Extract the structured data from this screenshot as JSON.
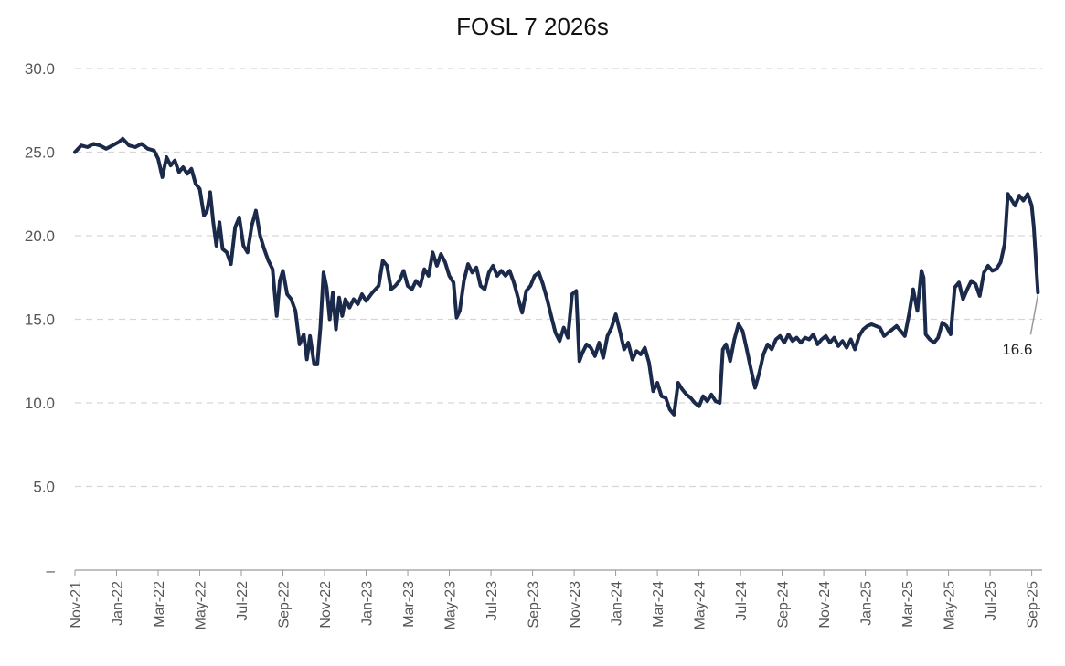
{
  "chart_data": {
    "type": "line",
    "title": "FOSL 7 2026s",
    "xlabel": "",
    "ylabel": "",
    "ylim": [
      0,
      30
    ],
    "grid": true,
    "y_ticks": [
      {
        "value": 0,
        "label": "–"
      },
      {
        "value": 5,
        "label": "5.0"
      },
      {
        "value": 10,
        "label": "10.0"
      },
      {
        "value": 15,
        "label": "15.0"
      },
      {
        "value": 20,
        "label": "20.0"
      },
      {
        "value": 25,
        "label": "25.0"
      },
      {
        "value": 30,
        "label": "30.0"
      }
    ],
    "x_range": [
      0,
      46.5
    ],
    "x_ticks": [
      {
        "value": 0,
        "label": "Nov-21"
      },
      {
        "value": 2,
        "label": "Jan-22"
      },
      {
        "value": 4,
        "label": "Mar-22"
      },
      {
        "value": 6,
        "label": "May-22"
      },
      {
        "value": 8,
        "label": "Jul-22"
      },
      {
        "value": 10,
        "label": "Sep-22"
      },
      {
        "value": 12,
        "label": "Nov-22"
      },
      {
        "value": 14,
        "label": "Jan-23"
      },
      {
        "value": 16,
        "label": "Mar-23"
      },
      {
        "value": 18,
        "label": "May-23"
      },
      {
        "value": 20,
        "label": "Jul-23"
      },
      {
        "value": 22,
        "label": "Sep-23"
      },
      {
        "value": 24,
        "label": "Nov-23"
      },
      {
        "value": 26,
        "label": "Jan-24"
      },
      {
        "value": 28,
        "label": "Mar-24"
      },
      {
        "value": 30,
        "label": "May-24"
      },
      {
        "value": 32,
        "label": "Jul-24"
      },
      {
        "value": 34,
        "label": "Sep-24"
      },
      {
        "value": 36,
        "label": "Nov-24"
      },
      {
        "value": 38,
        "label": "Jan-25"
      },
      {
        "value": 40,
        "label": "Mar-25"
      },
      {
        "value": 42,
        "label": "May-25"
      },
      {
        "value": 44,
        "label": "Jul-25"
      },
      {
        "value": 46,
        "label": "Sep-25"
      }
    ],
    "series": [
      {
        "name": "FOSL 7 2026s",
        "color": "#1b2a4a",
        "points": [
          [
            0.0,
            25.0
          ],
          [
            0.3,
            25.4
          ],
          [
            0.6,
            25.3
          ],
          [
            0.9,
            25.5
          ],
          [
            1.2,
            25.4
          ],
          [
            1.5,
            25.2
          ],
          [
            1.8,
            25.4
          ],
          [
            2.1,
            25.6
          ],
          [
            2.3,
            25.8
          ],
          [
            2.6,
            25.4
          ],
          [
            2.9,
            25.3
          ],
          [
            3.2,
            25.5
          ],
          [
            3.5,
            25.2
          ],
          [
            3.8,
            25.1
          ],
          [
            4.0,
            24.6
          ],
          [
            4.2,
            23.5
          ],
          [
            4.4,
            24.7
          ],
          [
            4.6,
            24.2
          ],
          [
            4.8,
            24.5
          ],
          [
            5.0,
            23.8
          ],
          [
            5.2,
            24.1
          ],
          [
            5.4,
            23.7
          ],
          [
            5.6,
            24.0
          ],
          [
            5.8,
            23.1
          ],
          [
            6.0,
            22.8
          ],
          [
            6.2,
            21.2
          ],
          [
            6.35,
            21.5
          ],
          [
            6.5,
            22.6
          ],
          [
            6.65,
            20.8
          ],
          [
            6.8,
            19.4
          ],
          [
            6.95,
            20.8
          ],
          [
            7.1,
            19.2
          ],
          [
            7.3,
            19.0
          ],
          [
            7.5,
            18.3
          ],
          [
            7.7,
            20.5
          ],
          [
            7.9,
            21.1
          ],
          [
            8.1,
            19.4
          ],
          [
            8.3,
            19.0
          ],
          [
            8.5,
            20.6
          ],
          [
            8.7,
            21.5
          ],
          [
            8.9,
            20.0
          ],
          [
            9.1,
            19.2
          ],
          [
            9.3,
            18.5
          ],
          [
            9.5,
            18.0
          ],
          [
            9.7,
            15.2
          ],
          [
            9.85,
            17.3
          ],
          [
            10.0,
            17.9
          ],
          [
            10.2,
            16.5
          ],
          [
            10.4,
            16.2
          ],
          [
            10.6,
            15.5
          ],
          [
            10.8,
            13.5
          ],
          [
            11.0,
            14.1
          ],
          [
            11.15,
            12.6
          ],
          [
            11.3,
            14.0
          ],
          [
            11.5,
            12.3
          ],
          [
            11.65,
            12.3
          ],
          [
            11.8,
            14.5
          ],
          [
            11.95,
            17.8
          ],
          [
            12.1,
            16.9
          ],
          [
            12.25,
            15.0
          ],
          [
            12.4,
            16.6
          ],
          [
            12.55,
            14.4
          ],
          [
            12.7,
            16.3
          ],
          [
            12.85,
            15.2
          ],
          [
            13.0,
            16.2
          ],
          [
            13.2,
            15.7
          ],
          [
            13.4,
            16.2
          ],
          [
            13.6,
            15.9
          ],
          [
            13.8,
            16.5
          ],
          [
            14.0,
            16.1
          ],
          [
            14.3,
            16.6
          ],
          [
            14.6,
            17.0
          ],
          [
            14.8,
            18.5
          ],
          [
            15.0,
            18.2
          ],
          [
            15.2,
            16.8
          ],
          [
            15.4,
            17.0
          ],
          [
            15.6,
            17.3
          ],
          [
            15.8,
            17.9
          ],
          [
            16.0,
            17.0
          ],
          [
            16.2,
            16.8
          ],
          [
            16.4,
            17.3
          ],
          [
            16.6,
            17.0
          ],
          [
            16.8,
            18.0
          ],
          [
            17.0,
            17.6
          ],
          [
            17.2,
            19.0
          ],
          [
            17.4,
            18.2
          ],
          [
            17.6,
            18.9
          ],
          [
            17.8,
            18.4
          ],
          [
            18.0,
            17.6
          ],
          [
            18.2,
            17.2
          ],
          [
            18.35,
            15.1
          ],
          [
            18.5,
            15.5
          ],
          [
            18.7,
            17.3
          ],
          [
            18.9,
            18.3
          ],
          [
            19.1,
            17.8
          ],
          [
            19.3,
            18.1
          ],
          [
            19.5,
            17.0
          ],
          [
            19.7,
            16.8
          ],
          [
            19.9,
            17.8
          ],
          [
            20.1,
            18.2
          ],
          [
            20.3,
            17.6
          ],
          [
            20.5,
            17.9
          ],
          [
            20.7,
            17.6
          ],
          [
            20.9,
            17.9
          ],
          [
            21.1,
            17.2
          ],
          [
            21.3,
            16.3
          ],
          [
            21.5,
            15.4
          ],
          [
            21.7,
            16.7
          ],
          [
            21.9,
            17.0
          ],
          [
            22.1,
            17.6
          ],
          [
            22.3,
            17.8
          ],
          [
            22.5,
            17.1
          ],
          [
            22.7,
            16.2
          ],
          [
            22.9,
            15.2
          ],
          [
            23.1,
            14.2
          ],
          [
            23.3,
            13.7
          ],
          [
            23.5,
            14.5
          ],
          [
            23.7,
            13.9
          ],
          [
            23.9,
            16.5
          ],
          [
            24.1,
            16.7
          ],
          [
            24.25,
            12.5
          ],
          [
            24.4,
            13.0
          ],
          [
            24.6,
            13.5
          ],
          [
            24.8,
            13.3
          ],
          [
            25.0,
            12.8
          ],
          [
            25.2,
            13.6
          ],
          [
            25.4,
            12.7
          ],
          [
            25.6,
            14.0
          ],
          [
            25.8,
            14.5
          ],
          [
            26.0,
            15.3
          ],
          [
            26.2,
            14.3
          ],
          [
            26.4,
            13.2
          ],
          [
            26.6,
            13.6
          ],
          [
            26.8,
            12.6
          ],
          [
            27.0,
            13.1
          ],
          [
            27.2,
            12.9
          ],
          [
            27.4,
            13.3
          ],
          [
            27.6,
            12.4
          ],
          [
            27.8,
            10.7
          ],
          [
            28.0,
            11.2
          ],
          [
            28.2,
            10.4
          ],
          [
            28.4,
            10.3
          ],
          [
            28.6,
            9.6
          ],
          [
            28.8,
            9.3
          ],
          [
            29.0,
            11.2
          ],
          [
            29.2,
            10.8
          ],
          [
            29.4,
            10.5
          ],
          [
            29.6,
            10.3
          ],
          [
            29.8,
            10.0
          ],
          [
            30.0,
            9.8
          ],
          [
            30.2,
            10.4
          ],
          [
            30.4,
            10.1
          ],
          [
            30.6,
            10.5
          ],
          [
            30.8,
            10.1
          ],
          [
            31.0,
            10.0
          ],
          [
            31.15,
            13.2
          ],
          [
            31.3,
            13.5
          ],
          [
            31.5,
            12.5
          ],
          [
            31.7,
            13.8
          ],
          [
            31.9,
            14.7
          ],
          [
            32.1,
            14.3
          ],
          [
            32.3,
            13.2
          ],
          [
            32.5,
            12.0
          ],
          [
            32.7,
            10.9
          ],
          [
            32.9,
            11.8
          ],
          [
            33.1,
            12.9
          ],
          [
            33.3,
            13.5
          ],
          [
            33.5,
            13.2
          ],
          [
            33.7,
            13.8
          ],
          [
            33.9,
            14.0
          ],
          [
            34.1,
            13.6
          ],
          [
            34.3,
            14.1
          ],
          [
            34.5,
            13.7
          ],
          [
            34.7,
            13.9
          ],
          [
            34.9,
            13.6
          ],
          [
            35.1,
            13.9
          ],
          [
            35.3,
            13.8
          ],
          [
            35.5,
            14.1
          ],
          [
            35.7,
            13.5
          ],
          [
            35.9,
            13.8
          ],
          [
            36.1,
            14.0
          ],
          [
            36.3,
            13.6
          ],
          [
            36.5,
            13.9
          ],
          [
            36.7,
            13.4
          ],
          [
            36.9,
            13.7
          ],
          [
            37.1,
            13.3
          ],
          [
            37.3,
            13.8
          ],
          [
            37.5,
            13.2
          ],
          [
            37.7,
            14.0
          ],
          [
            37.9,
            14.4
          ],
          [
            38.1,
            14.6
          ],
          [
            38.3,
            14.7
          ],
          [
            38.5,
            14.6
          ],
          [
            38.7,
            14.5
          ],
          [
            38.9,
            14.0
          ],
          [
            39.1,
            14.2
          ],
          [
            39.3,
            14.4
          ],
          [
            39.5,
            14.6
          ],
          [
            39.7,
            14.3
          ],
          [
            39.9,
            14.0
          ],
          [
            40.1,
            15.3
          ],
          [
            40.3,
            16.8
          ],
          [
            40.5,
            15.5
          ],
          [
            40.7,
            17.9
          ],
          [
            40.8,
            17.5
          ],
          [
            40.9,
            14.1
          ],
          [
            41.1,
            13.8
          ],
          [
            41.3,
            13.6
          ],
          [
            41.5,
            13.9
          ],
          [
            41.7,
            14.8
          ],
          [
            41.9,
            14.6
          ],
          [
            42.1,
            14.1
          ],
          [
            42.3,
            16.9
          ],
          [
            42.5,
            17.2
          ],
          [
            42.7,
            16.2
          ],
          [
            42.9,
            16.8
          ],
          [
            43.1,
            17.3
          ],
          [
            43.3,
            17.1
          ],
          [
            43.5,
            16.4
          ],
          [
            43.7,
            17.8
          ],
          [
            43.9,
            18.2
          ],
          [
            44.1,
            17.9
          ],
          [
            44.3,
            18.0
          ],
          [
            44.5,
            18.4
          ],
          [
            44.7,
            19.5
          ],
          [
            44.85,
            22.5
          ],
          [
            45.0,
            22.2
          ],
          [
            45.2,
            21.8
          ],
          [
            45.4,
            22.4
          ],
          [
            45.6,
            22.1
          ],
          [
            45.8,
            22.5
          ],
          [
            46.0,
            21.8
          ],
          [
            46.1,
            20.5
          ],
          [
            46.2,
            18.5
          ],
          [
            46.3,
            16.6
          ]
        ]
      }
    ],
    "annotations": [
      {
        "text": "16.6",
        "x": 46.3,
        "y": 16.6,
        "placement": "below-left"
      }
    ]
  }
}
